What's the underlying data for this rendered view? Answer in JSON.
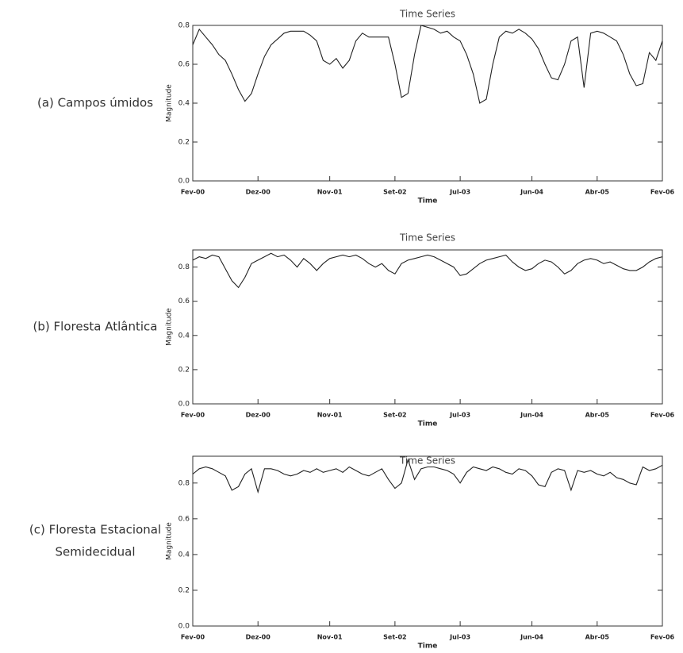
{
  "chart_data": [
    {
      "type": "line",
      "title": "Time Series",
      "x_label": "Time",
      "y_label": "Magnitude",
      "panel_label": [
        "(a) Campos úmidos"
      ],
      "x": [
        0,
        1,
        2,
        3,
        4,
        5,
        6,
        7,
        8,
        9,
        10,
        11,
        12,
        13,
        14,
        15,
        16,
        17,
        18,
        19,
        20,
        21,
        22,
        23,
        24,
        25,
        26,
        27,
        28,
        29,
        30,
        31,
        32,
        33,
        34,
        35,
        36,
        37,
        38,
        39,
        40,
        41,
        42,
        43,
        44,
        45,
        46,
        47,
        48,
        49,
        50,
        51,
        52,
        53,
        54,
        55,
        56,
        57,
        58,
        59,
        60,
        61,
        62,
        63,
        64,
        65,
        66,
        67,
        68,
        69,
        70,
        71,
        72
      ],
      "values": [
        0.7,
        0.78,
        0.74,
        0.7,
        0.65,
        0.62,
        0.55,
        0.47,
        0.41,
        0.45,
        0.55,
        0.64,
        0.7,
        0.73,
        0.76,
        0.77,
        0.77,
        0.77,
        0.75,
        0.72,
        0.62,
        0.6,
        0.63,
        0.58,
        0.62,
        0.72,
        0.76,
        0.74,
        0.74,
        0.74,
        0.74,
        0.6,
        0.43,
        0.45,
        0.65,
        0.8,
        0.79,
        0.78,
        0.76,
        0.77,
        0.74,
        0.72,
        0.65,
        0.55,
        0.4,
        0.42,
        0.6,
        0.74,
        0.77,
        0.76,
        0.78,
        0.76,
        0.73,
        0.68,
        0.6,
        0.53,
        0.52,
        0.6,
        0.72,
        0.74,
        0.48,
        0.76,
        0.77,
        0.76,
        0.74,
        0.72,
        0.65,
        0.55,
        0.49,
        0.5,
        0.66,
        0.62,
        0.72
      ],
      "color": "#222222",
      "xlim": [
        0,
        72
      ],
      "xticks": [
        {
          "value": 0,
          "label": "Fev-00"
        },
        {
          "value": 10,
          "label": "Dez-00"
        },
        {
          "value": 21,
          "label": "Nov-01"
        },
        {
          "value": 31,
          "label": "Set-02"
        },
        {
          "value": 41,
          "label": "Jul-03"
        },
        {
          "value": 52,
          "label": "Jun-04"
        },
        {
          "value": 62,
          "label": "Abr-05"
        },
        {
          "value": 72,
          "label": "Fev-06"
        }
      ],
      "ylim": [
        0,
        0.8
      ],
      "yticks": [
        {
          "value": 0,
          "label": "0.0"
        },
        0.2,
        0.4,
        0.6,
        0.8
      ]
    },
    {
      "type": "line",
      "title": "Time Series",
      "x_label": "Time",
      "y_label": "Magnitude",
      "panel_label": [
        "(b) Floresta Atlântica"
      ],
      "x": [
        0,
        1,
        2,
        3,
        4,
        5,
        6,
        7,
        8,
        9,
        10,
        11,
        12,
        13,
        14,
        15,
        16,
        17,
        18,
        19,
        20,
        21,
        22,
        23,
        24,
        25,
        26,
        27,
        28,
        29,
        30,
        31,
        32,
        33,
        34,
        35,
        36,
        37,
        38,
        39,
        40,
        41,
        42,
        43,
        44,
        45,
        46,
        47,
        48,
        49,
        50,
        51,
        52,
        53,
        54,
        55,
        56,
        57,
        58,
        59,
        60,
        61,
        62,
        63,
        64,
        65,
        66,
        67,
        68,
        69,
        70,
        71,
        72
      ],
      "values": [
        0.84,
        0.86,
        0.85,
        0.87,
        0.86,
        0.79,
        0.72,
        0.68,
        0.74,
        0.82,
        0.84,
        0.86,
        0.88,
        0.86,
        0.87,
        0.84,
        0.8,
        0.85,
        0.82,
        0.78,
        0.82,
        0.85,
        0.86,
        0.87,
        0.86,
        0.87,
        0.85,
        0.82,
        0.8,
        0.82,
        0.78,
        0.76,
        0.82,
        0.84,
        0.85,
        0.86,
        0.87,
        0.86,
        0.84,
        0.82,
        0.8,
        0.75,
        0.76,
        0.79,
        0.82,
        0.84,
        0.85,
        0.86,
        0.87,
        0.83,
        0.8,
        0.78,
        0.79,
        0.82,
        0.84,
        0.83,
        0.8,
        0.76,
        0.78,
        0.82,
        0.84,
        0.85,
        0.84,
        0.82,
        0.83,
        0.81,
        0.79,
        0.78,
        0.78,
        0.8,
        0.83,
        0.85,
        0.86
      ],
      "color": "#222222",
      "xlim": [
        0,
        72
      ],
      "xticks": [
        {
          "value": 0,
          "label": "Fev-00"
        },
        {
          "value": 10,
          "label": "Dez-00"
        },
        {
          "value": 21,
          "label": "Nov-01"
        },
        {
          "value": 31,
          "label": "Set-02"
        },
        {
          "value": 41,
          "label": "Jul-03"
        },
        {
          "value": 52,
          "label": "Jun-04"
        },
        {
          "value": 62,
          "label": "Abr-05"
        },
        {
          "value": 72,
          "label": "Fev-06"
        }
      ],
      "ylim": [
        0,
        0.9
      ],
      "yticks": [
        {
          "value": 0,
          "label": "0.0"
        },
        0.2,
        0.4,
        0.6,
        0.8
      ]
    },
    {
      "type": "line",
      "title": "Time Series",
      "x_label": "Time",
      "y_label": "Magnitude",
      "panel_label": [
        "(c) Floresta Estacional",
        "Semidecidual"
      ],
      "x": [
        0,
        1,
        2,
        3,
        4,
        5,
        6,
        7,
        8,
        9,
        10,
        11,
        12,
        13,
        14,
        15,
        16,
        17,
        18,
        19,
        20,
        21,
        22,
        23,
        24,
        25,
        26,
        27,
        28,
        29,
        30,
        31,
        32,
        33,
        34,
        35,
        36,
        37,
        38,
        39,
        40,
        41,
        42,
        43,
        44,
        45,
        46,
        47,
        48,
        49,
        50,
        51,
        52,
        53,
        54,
        55,
        56,
        57,
        58,
        59,
        60,
        61,
        62,
        63,
        64,
        65,
        66,
        67,
        68,
        69,
        70,
        71,
        72
      ],
      "values": [
        0.85,
        0.88,
        0.89,
        0.88,
        0.86,
        0.84,
        0.76,
        0.78,
        0.85,
        0.88,
        0.75,
        0.88,
        0.88,
        0.87,
        0.85,
        0.84,
        0.85,
        0.87,
        0.86,
        0.88,
        0.86,
        0.87,
        0.88,
        0.86,
        0.89,
        0.87,
        0.85,
        0.84,
        0.86,
        0.88,
        0.82,
        0.77,
        0.8,
        0.93,
        0.82,
        0.88,
        0.89,
        0.89,
        0.88,
        0.87,
        0.85,
        0.8,
        0.86,
        0.89,
        0.88,
        0.87,
        0.89,
        0.88,
        0.86,
        0.85,
        0.88,
        0.87,
        0.84,
        0.79,
        0.78,
        0.86,
        0.88,
        0.87,
        0.76,
        0.87,
        0.86,
        0.87,
        0.85,
        0.84,
        0.86,
        0.83,
        0.82,
        0.8,
        0.79,
        0.89,
        0.87,
        0.88,
        0.9
      ],
      "color": "#222222",
      "xlim": [
        0,
        72
      ],
      "xticks": [
        {
          "value": 0,
          "label": "Fev-00"
        },
        {
          "value": 10,
          "label": "Dez-00"
        },
        {
          "value": 21,
          "label": "Nov-01"
        },
        {
          "value": 31,
          "label": "Set-02"
        },
        {
          "value": 41,
          "label": "Jul-03"
        },
        {
          "value": 52,
          "label": "Jun-04"
        },
        {
          "value": 62,
          "label": "Abr-05"
        },
        {
          "value": 72,
          "label": "Fev-06"
        }
      ],
      "ylim": [
        0,
        0.95
      ],
      "yticks": [
        {
          "value": 0,
          "label": "0.0"
        },
        0.2,
        0.4,
        0.6,
        0.8
      ]
    }
  ]
}
